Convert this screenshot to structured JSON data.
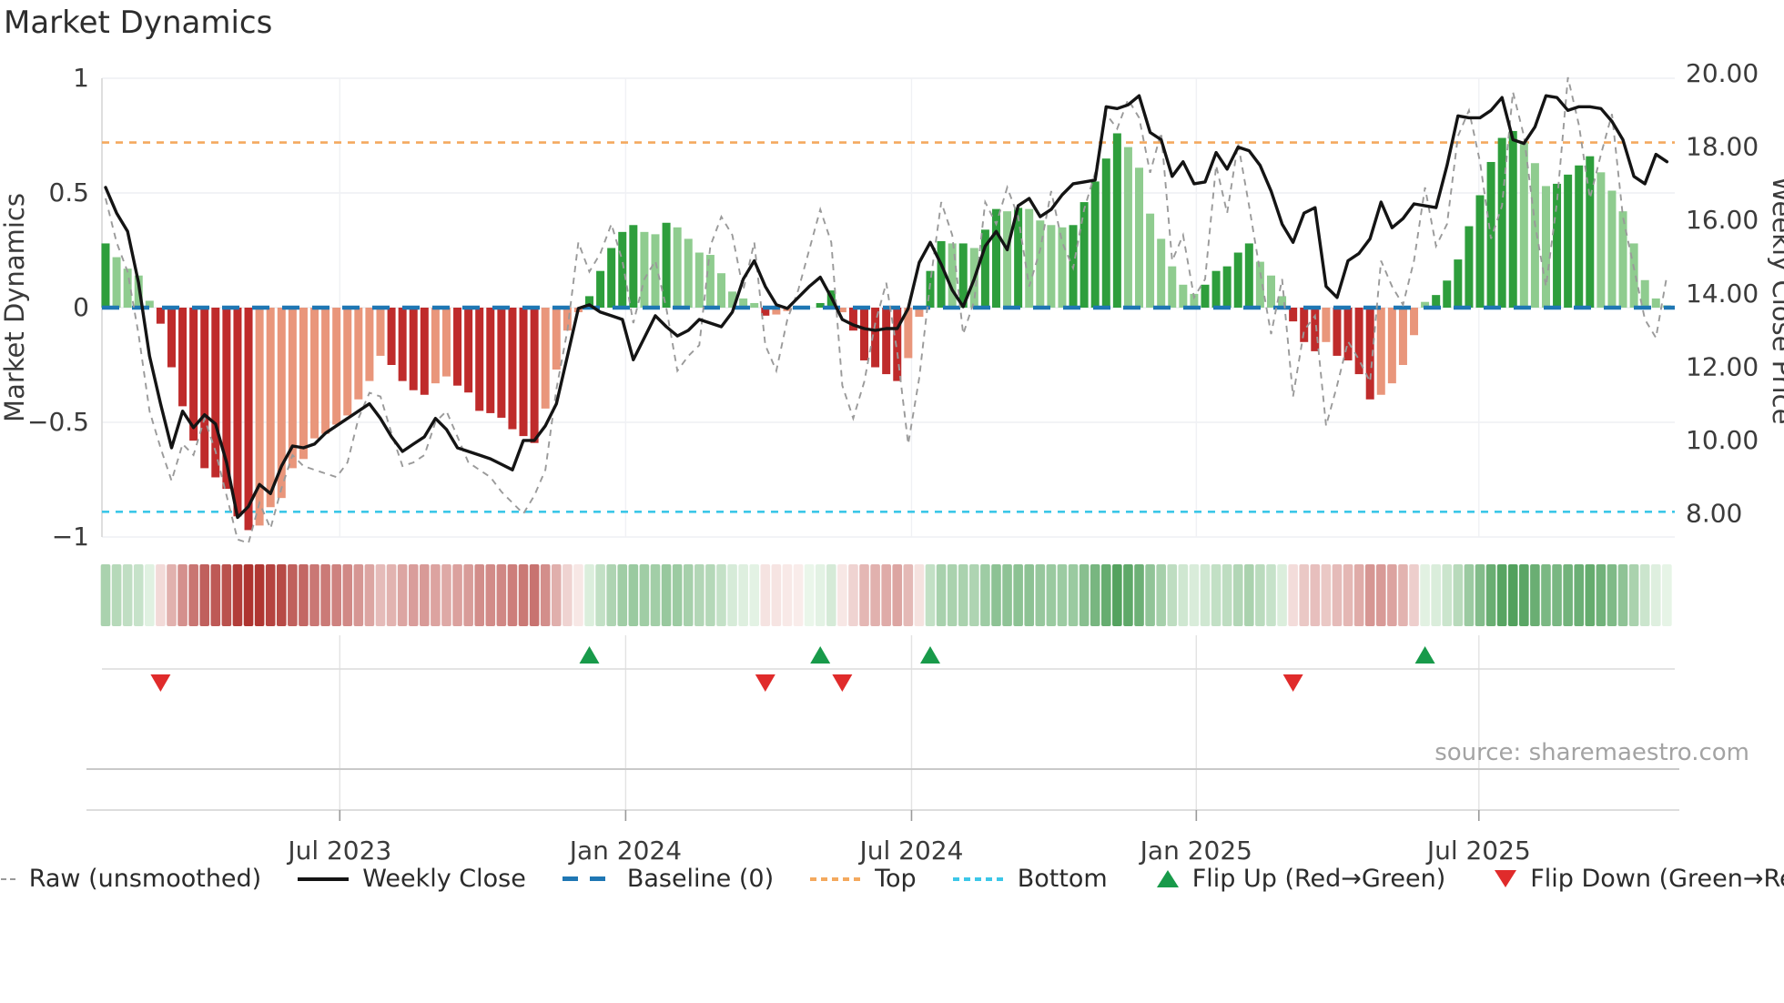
{
  "title": "Market Dynamics",
  "source": "source: sharemaestro.com",
  "axes": {
    "left_label": "Market Dynamics",
    "right_label": "Weekly Close Price",
    "left_ticks": [
      {
        "label": "1",
        "value": 1
      },
      {
        "label": "0.5",
        "value": 0.5
      },
      {
        "label": "0",
        "value": 0
      },
      {
        "label": "−0.5",
        "value": -0.5
      },
      {
        "label": "−1",
        "value": -1
      }
    ],
    "right_ticks": [
      {
        "label": "20.00",
        "value": 20
      },
      {
        "label": "18.00",
        "value": 18
      },
      {
        "label": "16.00",
        "value": 16
      },
      {
        "label": "14.00",
        "value": 14
      },
      {
        "label": "12.00",
        "value": 12
      },
      {
        "label": "10.00",
        "value": 10
      },
      {
        "label": "8.00",
        "value": 8
      }
    ],
    "x_ticks": [
      {
        "label": "Jul 2023",
        "week": 21.3
      },
      {
        "label": "Jan 2024",
        "week": 47.3
      },
      {
        "label": "Jul 2024",
        "week": 73.3
      },
      {
        "label": "Jan 2025",
        "week": 99.2
      },
      {
        "label": "Jul 2025",
        "week": 124.9
      }
    ]
  },
  "legend": {
    "items": [
      {
        "label": "Raw (unsmoothed)",
        "swatch": "dash-gray"
      },
      {
        "label": "Weekly Close",
        "swatch": "line-black"
      },
      {
        "label": "Baseline (0)",
        "swatch": "dash-blue"
      },
      {
        "label": "Top",
        "swatch": "dot-orange"
      },
      {
        "label": "Bottom",
        "swatch": "dot-cyan"
      },
      {
        "label": "Flip Up (Red→Green)",
        "swatch": "tri-up"
      },
      {
        "label": "Flip Down (Green→Red)",
        "swatch": "tri-down"
      }
    ]
  },
  "chart_data": {
    "type": "combo",
    "title": "Market Dynamics",
    "x": "weekly data, ~Feb 2023 to ~Oct 2025",
    "n_weeks": 143,
    "x_tick_labels": [
      "Jul 2023",
      "Jan 2024",
      "Jul 2024",
      "Jan 2025",
      "Jul 2025"
    ],
    "left_axis": {
      "label": "Market Dynamics",
      "range": [
        -1,
        1
      ]
    },
    "right_axis": {
      "label": "Weekly Close Price",
      "range": [
        8,
        20
      ]
    },
    "baseline": 0,
    "top_line": 0.72,
    "bottom_line": -0.89,
    "grid": true,
    "legend_position": "bottom",
    "oscillator": [
      0.28,
      0.22,
      0.17,
      0.14,
      0.03,
      -0.07,
      -0.26,
      -0.43,
      -0.58,
      -0.7,
      -0.74,
      -0.79,
      -0.91,
      -0.97,
      -0.95,
      -0.87,
      -0.83,
      -0.7,
      -0.66,
      -0.57,
      -0.55,
      -0.51,
      -0.47,
      -0.4,
      -0.32,
      -0.21,
      -0.25,
      -0.32,
      -0.36,
      -0.38,
      -0.33,
      -0.3,
      -0.34,
      -0.37,
      -0.45,
      -0.46,
      -0.48,
      -0.53,
      -0.56,
      -0.59,
      -0.44,
      -0.27,
      -0.1,
      -0.02,
      0.05,
      0.16,
      0.26,
      0.33,
      0.36,
      0.33,
      0.32,
      0.37,
      0.35,
      0.3,
      0.24,
      0.23,
      0.15,
      0.07,
      0.04,
      0.02,
      -0.035,
      -0.03,
      -0.015,
      -0.005,
      0.0,
      0.02,
      0.075,
      -0.02,
      -0.1,
      -0.23,
      -0.26,
      -0.29,
      -0.32,
      -0.22,
      -0.04,
      0.16,
      0.29,
      0.28,
      0.28,
      0.26,
      0.34,
      0.43,
      0.42,
      0.435,
      0.43,
      0.38,
      0.36,
      0.35,
      0.36,
      0.46,
      0.55,
      0.65,
      0.76,
      0.7,
      0.61,
      0.41,
      0.3,
      0.18,
      0.1,
      0.06,
      0.1,
      0.16,
      0.18,
      0.24,
      0.28,
      0.2,
      0.14,
      0.05,
      -0.06,
      -0.15,
      -0.19,
      -0.15,
      -0.21,
      -0.23,
      -0.29,
      -0.4,
      -0.38,
      -0.33,
      -0.25,
      -0.12,
      0.025,
      0.055,
      0.118,
      0.21,
      0.355,
      0.49,
      0.635,
      0.74,
      0.77,
      0.72,
      0.63,
      0.53,
      0.54,
      0.58,
      0.62,
      0.66,
      0.59,
      0.51,
      0.42,
      0.28,
      0.12,
      0.04,
      0.01
    ],
    "weekly_close": [
      16.9,
      16.2,
      15.7,
      14.3,
      12.3,
      11.0,
      9.8,
      10.8,
      10.35,
      10.7,
      10.45,
      9.4,
      7.9,
      8.2,
      8.8,
      8.55,
      9.3,
      9.85,
      9.8,
      9.9,
      10.2,
      10.4,
      10.6,
      10.8,
      11.0,
      10.6,
      10.1,
      9.7,
      9.9,
      10.1,
      10.6,
      10.3,
      9.8,
      9.7,
      9.6,
      9.5,
      9.35,
      9.2,
      10.0,
      10.0,
      10.4,
      11.0,
      12.3,
      13.6,
      13.7,
      13.5,
      13.4,
      13.3,
      12.2,
      12.8,
      13.4,
      13.1,
      12.85,
      13.0,
      13.3,
      13.2,
      13.1,
      13.5,
      14.4,
      14.9,
      14.2,
      13.7,
      13.6,
      13.9,
      14.2,
      14.45,
      13.9,
      13.3,
      13.15,
      13.05,
      13.0,
      13.05,
      13.05,
      13.6,
      14.85,
      15.4,
      14.8,
      14.1,
      13.65,
      14.4,
      15.3,
      15.7,
      15.2,
      16.4,
      16.6,
      16.1,
      16.3,
      16.7,
      17.0,
      17.05,
      17.1,
      19.1,
      19.05,
      19.15,
      19.4,
      18.4,
      18.2,
      17.2,
      17.6,
      17.0,
      17.05,
      17.85,
      17.4,
      18.0,
      17.9,
      17.5,
      16.8,
      15.9,
      15.4,
      16.2,
      16.35,
      14.2,
      13.9,
      14.9,
      15.1,
      15.5,
      16.5,
      15.8,
      16.05,
      16.45,
      16.4,
      16.35,
      17.5,
      18.85,
      18.8,
      18.8,
      19.0,
      19.35,
      18.2,
      18.1,
      18.55,
      19.4,
      19.35,
      19.0,
      19.1,
      19.1,
      19.05,
      18.7,
      18.2,
      17.2,
      17.0,
      17.8,
      17.6
    ],
    "raw_unsmoothed": [
      16.6,
      15.4,
      14.6,
      12.9,
      10.8,
      9.8,
      8.9,
      9.9,
      9.6,
      10.6,
      9.7,
      8.5,
      7.3,
      7.2,
      8.3,
      7.6,
      8.7,
      9.6,
      9.3,
      9.2,
      9.1,
      9.0,
      9.4,
      10.6,
      11.3,
      11.2,
      10.2,
      9.3,
      9.4,
      9.6,
      10.5,
      10.8,
      10.1,
      9.4,
      9.2,
      9.0,
      8.6,
      8.3,
      8.0,
      8.5,
      9.2,
      11.4,
      13.0,
      15.4,
      14.6,
      15.1,
      15.9,
      14.9,
      13.2,
      14.4,
      14.9,
      13.6,
      11.9,
      12.3,
      12.6,
      15.3,
      16.1,
      15.6,
      14.1,
      15.4,
      12.6,
      11.9,
      13.3,
      14.1,
      15.2,
      16.3,
      15.4,
      11.5,
      10.6,
      11.6,
      13.2,
      14.3,
      12.4,
      9.9,
      11.7,
      14.3,
      16.5,
      15.6,
      12.9,
      13.8,
      16.5,
      15.9,
      16.9,
      16.1,
      14.2,
      15.2,
      16.8,
      15.4,
      14.7,
      16.3,
      17.3,
      18.9,
      18.5,
      19.3,
      18.8,
      17.3,
      18.4,
      14.9,
      15.6,
      13.9,
      14.4,
      17.5,
      16.2,
      18.1,
      16.4,
      14.6,
      12.9,
      14.4,
      11.2,
      13.0,
      13.4,
      10.4,
      11.5,
      12.7,
      12.2,
      11.6,
      14.9,
      14.2,
      13.7,
      14.9,
      16.9,
      15.3,
      15.9,
      18.3,
      19.0,
      17.6,
      15.5,
      16.4,
      19.5,
      18.3,
      15.9,
      14.2,
      16.5,
      19.9,
      18.6,
      16.6,
      17.8,
      18.9,
      16.1,
      14.7,
      13.3,
      12.8,
      14.5
    ],
    "flip_up_weeks": [
      44,
      65,
      75,
      120
    ],
    "flip_down_weeks": [
      5,
      60,
      67,
      108
    ],
    "heatmap_strip": "oscillator values rendered as red/green intensity cells below the plot",
    "colors": {
      "bar_up_strong": "#2e9e3c",
      "bar_up_weak": "#8fcc8f",
      "bar_down_strong": "#bf2b2b",
      "bar_down_weak": "#e9967b",
      "close_line": "#141414",
      "raw_line": "#9a9a9a",
      "baseline": "#1f77b4",
      "top": "#f4a95e",
      "bottom": "#3cc7e8",
      "flip_up": "#189a4a",
      "flip_down": "#e02b2b"
    }
  }
}
